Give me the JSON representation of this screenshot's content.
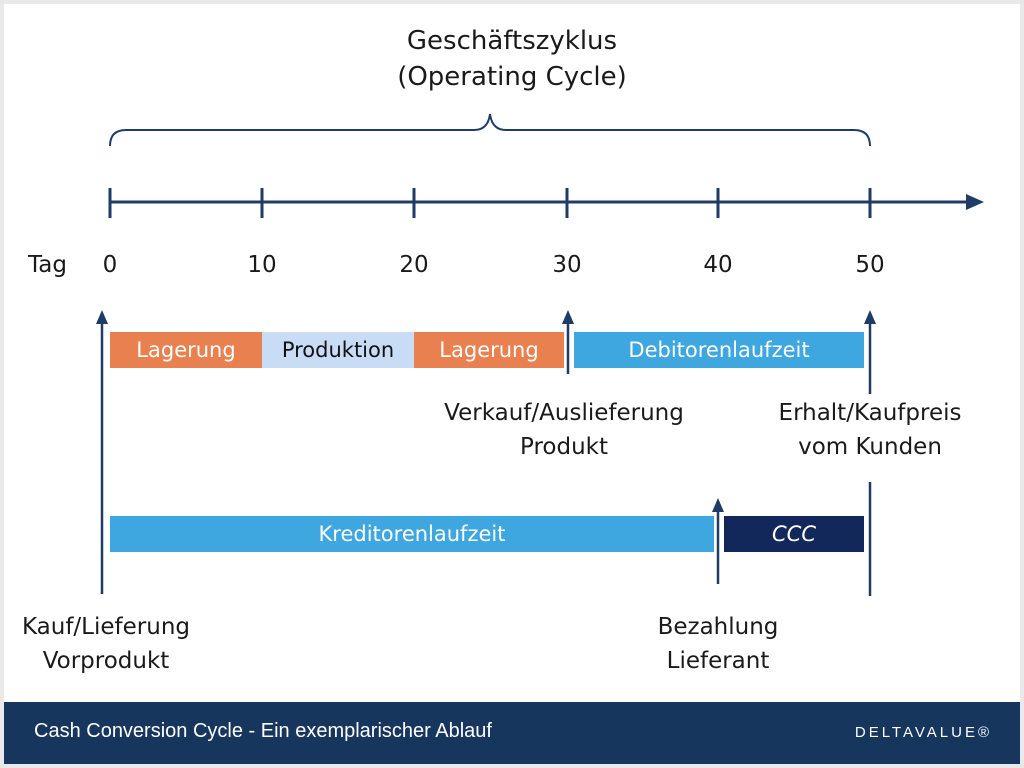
{
  "title": {
    "line1": "Geschäftszyklus",
    "line2": "(Operating Cycle)"
  },
  "timeline": {
    "axis_label": "Tag",
    "ticks": [
      "0",
      "10",
      "20",
      "30",
      "40",
      "50"
    ]
  },
  "bars": {
    "lagerung_1": "Lagerung",
    "produktion": "Produktion",
    "lagerung_2": "Lagerung",
    "debitoren": "Debitorenlaufzeit",
    "kreditoren": "Kreditorenlaufzeit",
    "ccc": "CCC"
  },
  "events": {
    "verkauf_line1": "Verkauf/Auslieferung",
    "verkauf_line2": "Produkt",
    "erhalt_line1": "Erhalt/Kaufpreis",
    "erhalt_line2": "vom Kunden",
    "kauf_line1": "Kauf/Lieferung",
    "kauf_line2": "Vorprodukt",
    "bezahlung_line1": "Bezahlung",
    "bezahlung_line2": "Lieferant"
  },
  "footer": {
    "caption": "Cash Conversion Cycle - Ein exemplarischer Ablauf",
    "brand": "DELTAVALUE®"
  },
  "colors": {
    "axis": "#1f3c67",
    "storage": "#e8814f",
    "production": "#c8ddf5",
    "receivables": "#3fa7df",
    "ccc": "#12275a",
    "footer": "#17365e"
  }
}
